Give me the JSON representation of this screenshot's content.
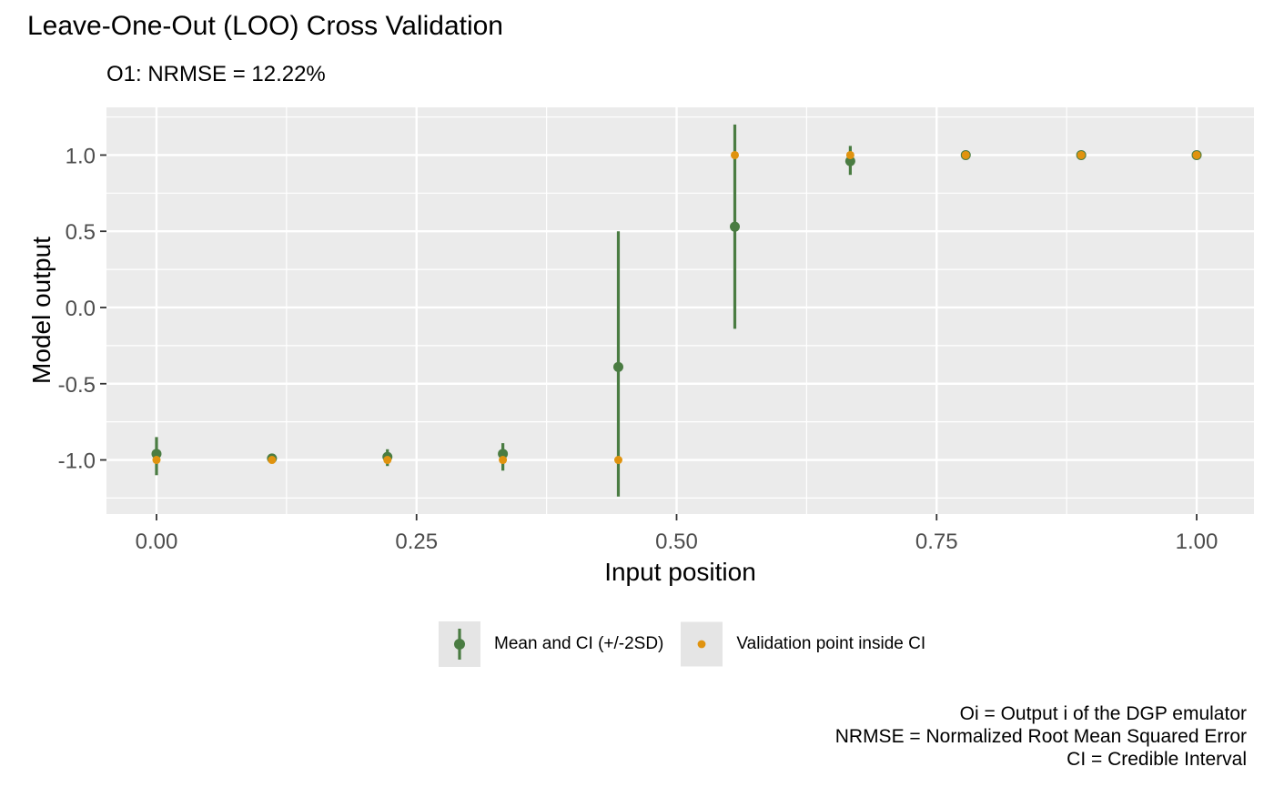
{
  "chart_data": {
    "type": "scatter",
    "title": "Leave-One-Out (LOO) Cross Validation",
    "subtitle": "O1: NRMSE = 12.22%",
    "xlabel": "Input position",
    "ylabel": "Model output",
    "xlim": [
      -0.0481,
      1.0551
    ],
    "ylim": [
      -1.355,
      1.313
    ],
    "grid": true,
    "legend_position": "bottom",
    "x_ticks": {
      "values": [
        0,
        0.25,
        0.5,
        0.75,
        1
      ],
      "labels": [
        "0.00",
        "0.25",
        "0.50",
        "0.75",
        "1.00"
      ],
      "minor": [
        0.125,
        0.375,
        0.625,
        0.875
      ]
    },
    "y_ticks": {
      "values": [
        1,
        0.5,
        0,
        -0.5,
        -1
      ],
      "labels": [
        "1.0",
        "0.5",
        "0.0",
        "-0.5",
        "-1.0"
      ],
      "minor": [
        1.25,
        0.75,
        0.25,
        -0.25,
        -0.75,
        -1.25
      ]
    },
    "series": [
      {
        "name": "Mean and CI (+/-2SD)",
        "type": "pointrange",
        "color": "#4A7C42",
        "points": [
          {
            "x": 0.0,
            "mean": -0.96,
            "lower": -1.1,
            "upper": -0.85
          },
          {
            "x": 0.111,
            "mean": -0.99,
            "lower": -1.02,
            "upper": -0.97
          },
          {
            "x": 0.222,
            "mean": -0.98,
            "lower": -1.04,
            "upper": -0.93
          },
          {
            "x": 0.333,
            "mean": -0.96,
            "lower": -1.07,
            "upper": -0.89
          },
          {
            "x": 0.444,
            "mean": -0.39,
            "lower": -1.24,
            "upper": 0.5
          },
          {
            "x": 0.556,
            "mean": 0.53,
            "lower": -0.14,
            "upper": 1.2
          },
          {
            "x": 0.667,
            "mean": 0.96,
            "lower": 0.87,
            "upper": 1.06
          },
          {
            "x": 0.778,
            "mean": 1.0,
            "lower": 0.97,
            "upper": 1.03
          },
          {
            "x": 0.889,
            "mean": 1.0,
            "lower": 0.98,
            "upper": 1.02
          },
          {
            "x": 1.0,
            "mean": 1.0,
            "lower": 0.98,
            "upper": 1.02
          }
        ]
      },
      {
        "name": "Validation point inside CI",
        "type": "point",
        "color": "#E0930F",
        "points": [
          {
            "x": 0.0,
            "y": -1.0
          },
          {
            "x": 0.111,
            "y": -1.0
          },
          {
            "x": 0.222,
            "y": -1.0
          },
          {
            "x": 0.333,
            "y": -1.0
          },
          {
            "x": 0.444,
            "y": -1.0
          },
          {
            "x": 0.556,
            "y": 1.0
          },
          {
            "x": 0.667,
            "y": 1.0
          },
          {
            "x": 0.778,
            "y": 1.0
          },
          {
            "x": 0.889,
            "y": 1.0
          },
          {
            "x": 1.0,
            "y": 1.0
          }
        ]
      }
    ],
    "caption_lines": [
      "Oi = Output i of the DGP emulator",
      "NRMSE = Normalized Root Mean Squared Error",
      "CI = Credible Interval"
    ],
    "colors": {
      "panel_background": "#EBEBEB",
      "grid": "#FFFFFF",
      "tick_label": "#4D4D4D",
      "tick_mark": "#333333",
      "legend_key_background": "#E5E5E5",
      "text": "#000000"
    }
  }
}
